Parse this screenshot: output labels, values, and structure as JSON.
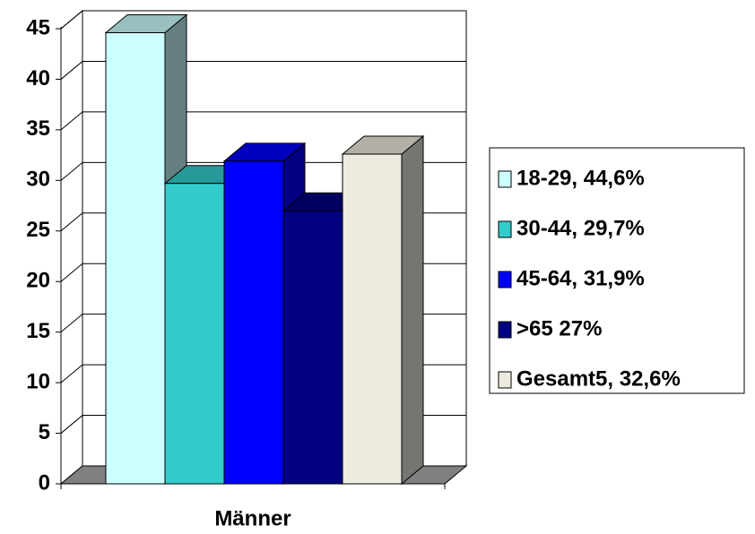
{
  "chart_data": {
    "type": "bar3d",
    "categories": [
      "Männer"
    ],
    "series": [
      {
        "name": "18-29, 44,6%",
        "color": "#ccffff",
        "values": [
          44.6
        ]
      },
      {
        "name": "30-44, 29,7%",
        "color": "#33cccc",
        "values": [
          29.7
        ]
      },
      {
        "name": "45-64, 31,9%",
        "color": "#0000ff",
        "values": [
          31.9
        ]
      },
      {
        "name": ">65 27%",
        "color": "#000080",
        "values": [
          27
        ]
      },
      {
        "name": "Gesamt5, 32,6%",
        "color": "#eeeae0",
        "values": [
          32.6
        ]
      }
    ],
    "ylim": [
      0,
      45
    ],
    "yticks": [
      0,
      5,
      10,
      15,
      20,
      25,
      30,
      35,
      40,
      45
    ],
    "grid": true,
    "legend": "right"
  }
}
